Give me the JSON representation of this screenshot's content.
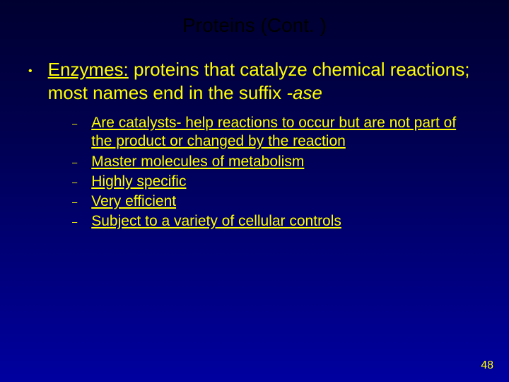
{
  "slide": {
    "title": "Proteins (Cont. )",
    "page_number": "48",
    "background": {
      "top_color": "#000030",
      "mid_color": "#000050",
      "bottom_color": "#0000a0"
    },
    "text_color": "#ffff00",
    "title_color": "#000000",
    "title_fontsize": 28,
    "body_fontsize": 26,
    "sub_fontsize": 21,
    "main_bullet": {
      "lead_underlined": "Enzymes:",
      "rest_before_italic": " proteins that catalyze chemical reactions; most names end in the suffix ",
      "italic_part": "-ase"
    },
    "sub_bullets": [
      {
        "lead": "Are catalysts",
        "rest": "- help reactions to occur but are not part of the product or changed by the reaction"
      },
      {
        "lead": "",
        "rest": "Master molecules of metabolism"
      },
      {
        "lead": "",
        "rest": "Highly specific"
      },
      {
        "lead": "",
        "rest": "Very efficient"
      },
      {
        "lead": "",
        "rest": "Subject to a variety of cellular controls"
      }
    ]
  }
}
